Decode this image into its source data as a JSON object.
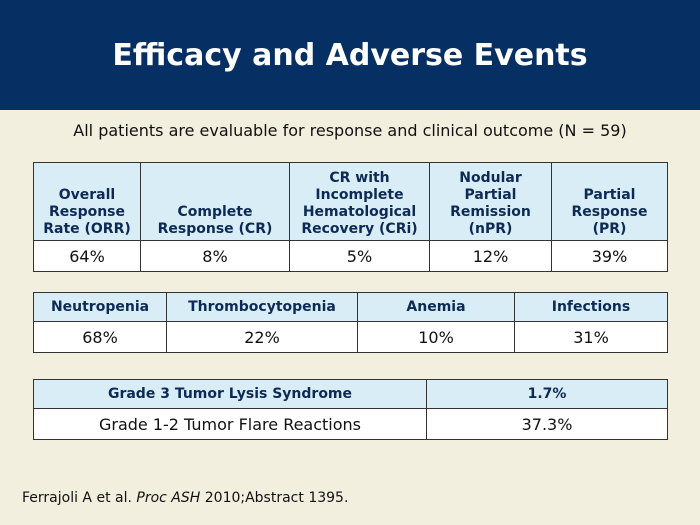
{
  "title": "Efficacy and Adverse Events",
  "subtitle": "All patients are evaluable for response and clinical outcome (N = 59)",
  "response_table": {
    "headers": [
      [
        "Overall",
        "Response",
        "Rate (ORR)"
      ],
      [
        "Complete",
        "Response (CR)"
      ],
      [
        "CR with",
        "Incomplete",
        "Hematological",
        "Recovery (CRi)"
      ],
      [
        "Nodular",
        "Partial",
        "Remission",
        "(nPR)"
      ],
      [
        "Partial",
        "Response",
        "(PR)"
      ]
    ],
    "values": [
      "64%",
      "8%",
      "5%",
      "12%",
      "39%"
    ]
  },
  "adverse_table": {
    "headers": [
      "Neutropenia",
      "Thrombocytopenia",
      "Anemia",
      "Infections"
    ],
    "values": [
      "68%",
      "22%",
      "10%",
      "31%"
    ]
  },
  "tumor_table": {
    "rows": [
      {
        "label": "Grade 3 Tumor Lysis Syndrome",
        "value": "1.7%"
      },
      {
        "label": "Grade 1-2 Tumor Flare Reactions",
        "value": "37.3%"
      }
    ]
  },
  "citation": {
    "authors": "Ferrajoli A et al.",
    "journal": "Proc ASH",
    "details": "2010;Abstract 1395."
  }
}
